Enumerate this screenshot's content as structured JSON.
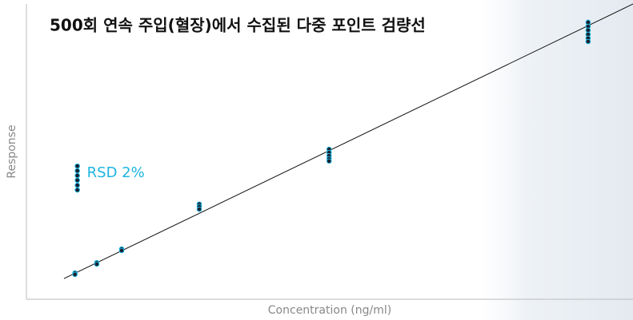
{
  "chart_data": {
    "type": "scatter",
    "title": "500회 연속 주입(혈장)에서 수집된 다중 포인트 검량선",
    "x_label": "Concentration (ng/ml)",
    "y_label": "Response",
    "xlim": [
      0,
      100
    ],
    "ylim": [
      0,
      100
    ],
    "x": [
      8.0,
      8.0,
      11.6,
      11.6,
      15.7,
      15.7,
      28.5,
      28.5,
      28.5,
      49.9,
      49.9,
      49.9,
      49.9,
      49.9,
      92.6,
      92.6,
      92.6,
      92.6,
      92.6,
      92.6
    ],
    "values": [
      8.9,
      8.4,
      12.4,
      11.9,
      17.0,
      16.5,
      32.2,
      31.4,
      30.5,
      50.8,
      49.7,
      48.6,
      47.6,
      46.8,
      93.8,
      92.4,
      91.1,
      89.7,
      88.4,
      87.3
    ],
    "color": "#1a1f2e",
    "highlight_color": "#1cb5e0",
    "fit_line": {
      "x": [
        6.2,
        100
      ],
      "values": [
        7.0,
        100
      ],
      "color": "#111111"
    },
    "inset": {
      "x": [
        8.4,
        8.4,
        8.4,
        8.4,
        8.4,
        8.4
      ],
      "values": [
        45.1,
        43.5,
        41.9,
        40.3,
        38.6,
        37.0
      ]
    },
    "annotation": "RSD 2%"
  }
}
